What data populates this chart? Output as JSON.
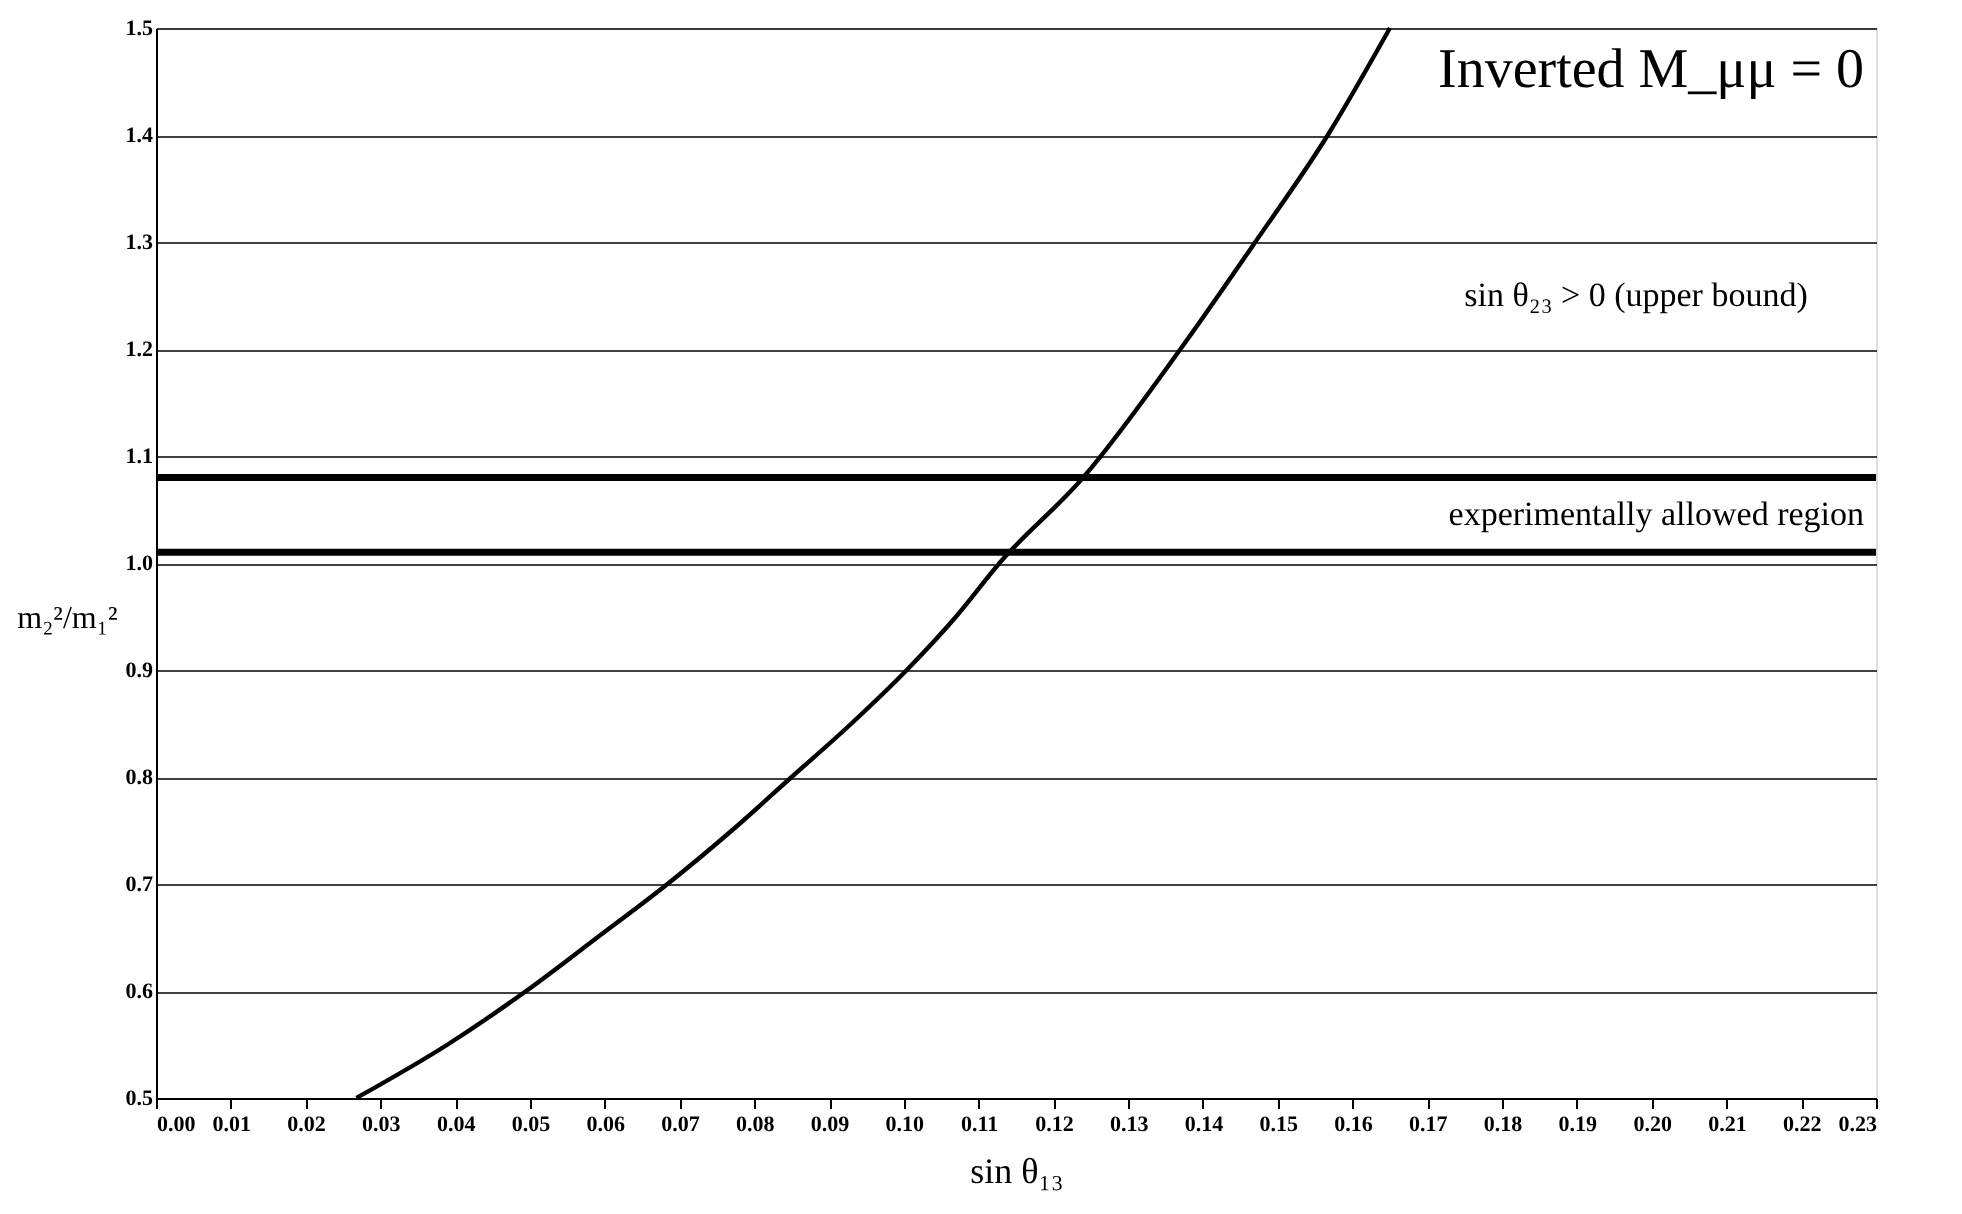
{
  "chart_data": {
    "type": "line",
    "xlabel": "sin θ₁₃",
    "ylabel": "m₂²/m₁²",
    "x": [
      0.0268,
      0.039,
      0.0495,
      0.059,
      0.0684,
      0.077,
      0.085,
      0.093,
      0.1004,
      0.107,
      0.1128,
      0.124,
      0.137,
      0.147,
      0.1567,
      0.165
    ],
    "series": [
      {
        "color": "#000000",
        "values": [
          0.5,
          0.55,
          0.6,
          0.65,
          0.7,
          0.75,
          0.8,
          0.85,
          0.9,
          0.95,
          1.0,
          1.08,
          1.2,
          1.3,
          1.4,
          1.5
        ]
      }
    ],
    "xlim": [
      0,
      0.23
    ],
    "ylim": [
      0.5,
      1.5
    ],
    "xticks": [
      {
        "value": 0,
        "label": "0.00"
      },
      0.01,
      0.02,
      0.03,
      0.04,
      0.05,
      0.06,
      0.07,
      0.08,
      0.09,
      {
        "value": 0.1,
        "label": "0.10"
      },
      0.11,
      0.12,
      0.13,
      0.14,
      0.15,
      0.16,
      0.17,
      0.18,
      0.19,
      {
        "value": 0.2,
        "label": "0.20"
      },
      0.21,
      0.22,
      0.23
    ],
    "yticks": [
      0.5,
      0.6,
      0.7,
      0.8,
      0.9,
      {
        "value": 1,
        "label": "1.0"
      },
      1.1,
      1.2,
      1.3,
      1.4,
      1.5
    ],
    "ref_lines": [
      {
        "axis": "y",
        "value": 1.08,
        "color": "#000000"
      },
      {
        "axis": "y",
        "value": 1.01,
        "color": "#000000"
      }
    ],
    "annotations": [
      "Inverted M_μμ = 0",
      "sin θ₂₃ > 0 (upper bound)",
      "experimentally allowed region"
    ],
    "grid": "y",
    "marker": "none",
    "line_style": "solid"
  }
}
